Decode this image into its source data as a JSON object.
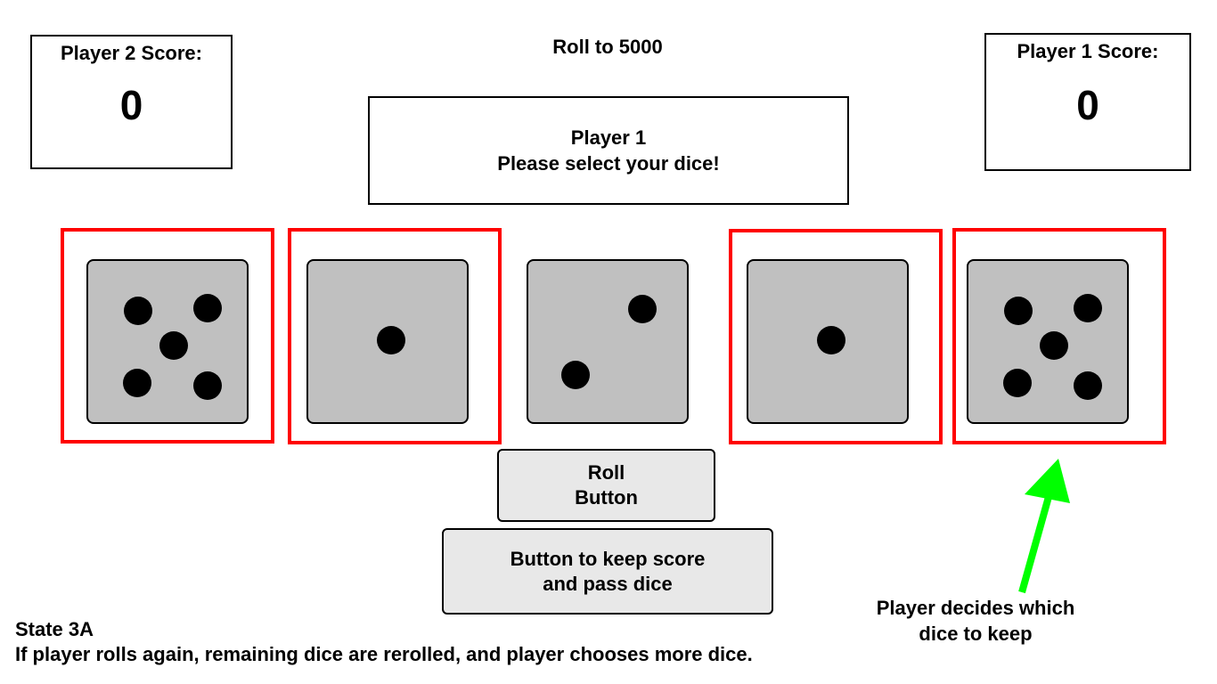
{
  "title": "Roll to 5000",
  "player2": {
    "label": "Player 2 Score:",
    "score": "0"
  },
  "player1": {
    "label": "Player 1 Score:",
    "score": "0"
  },
  "message": {
    "line1": "Player 1",
    "line2": "Please select your dice!"
  },
  "dice": [
    {
      "value": 5,
      "selected": true
    },
    {
      "value": 1,
      "selected": true
    },
    {
      "value": 2,
      "selected": false
    },
    {
      "value": 1,
      "selected": true
    },
    {
      "value": 5,
      "selected": true
    }
  ],
  "buttons": {
    "roll": {
      "line1": "Roll",
      "line2": "Button"
    },
    "keep": {
      "line1": "Button to keep score",
      "line2": "and pass dice"
    }
  },
  "annotation": {
    "line1": "Player decides which",
    "line2": "dice to keep"
  },
  "state": {
    "title": "State 3A",
    "description": "If player rolls again, remaining dice are rerolled, and player chooses more dice."
  },
  "colors": {
    "selection": "#ff0000",
    "arrow": "#00ff00",
    "die_face": "#c0c0c0",
    "button_bg": "#e8e8e8"
  }
}
